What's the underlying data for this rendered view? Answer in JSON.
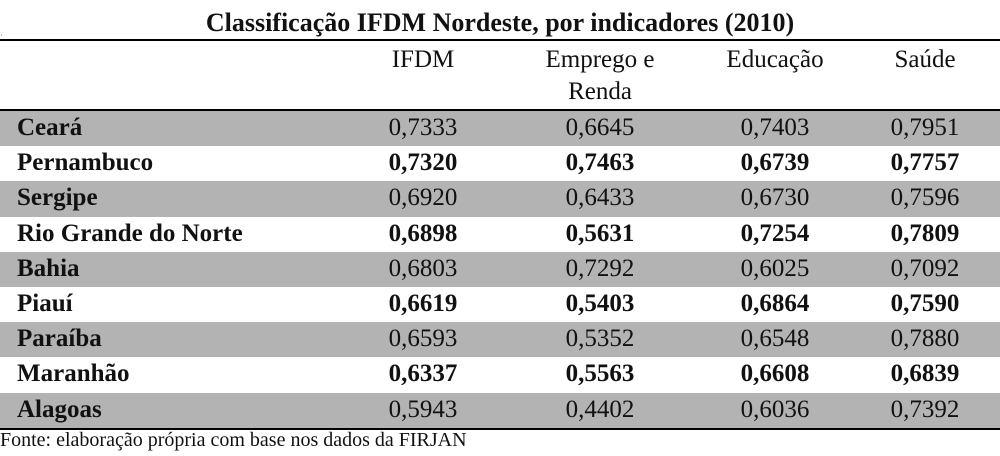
{
  "title": "Classificação IFDM Nordeste, por indicadores (2010)",
  "headers": {
    "ifdm": "IFDM",
    "emprego_line1": "Emprego e",
    "emprego_line2": "Renda",
    "educacao": "Educação",
    "saude": "Saúde"
  },
  "rows": [
    {
      "state": "Ceará",
      "ifdm": "0,7333",
      "emprego": "0,6645",
      "educacao": "0,7403",
      "saude": "0,7951"
    },
    {
      "state": "Pernambuco",
      "ifdm": "0,7320",
      "emprego": "0,7463",
      "educacao": "0,6739",
      "saude": "0,7757"
    },
    {
      "state": "Sergipe",
      "ifdm": "0,6920",
      "emprego": "0,6433",
      "educacao": "0,6730",
      "saude": "0,7596"
    },
    {
      "state": "Rio Grande do Norte",
      "ifdm": "0,6898",
      "emprego": "0,5631",
      "educacao": "0,7254",
      "saude": "0,7809"
    },
    {
      "state": "Bahia",
      "ifdm": "0,6803",
      "emprego": "0,7292",
      "educacao": "0,6025",
      "saude": "0,7092"
    },
    {
      "state": "Piauí",
      "ifdm": "0,6619",
      "emprego": "0,5403",
      "educacao": "0,6864",
      "saude": "0,7590"
    },
    {
      "state": "Paraíba",
      "ifdm": "0,6593",
      "emprego": "0,5352",
      "educacao": "0,6548",
      "saude": "0,7880"
    },
    {
      "state": "Maranhão",
      "ifdm": "0,6337",
      "emprego": "0,5563",
      "educacao": "0,6608",
      "saude": "0,6839"
    },
    {
      "state": "Alagoas",
      "ifdm": "0,5943",
      "emprego": "0,4402",
      "educacao": "0,6036",
      "saude": "0,7392"
    }
  ],
  "source": "Fonte: elaboração própria com base nos dados da FIRJAN",
  "colors": {
    "shaded_row": "#b3b3b3",
    "rule": "#000000"
  }
}
